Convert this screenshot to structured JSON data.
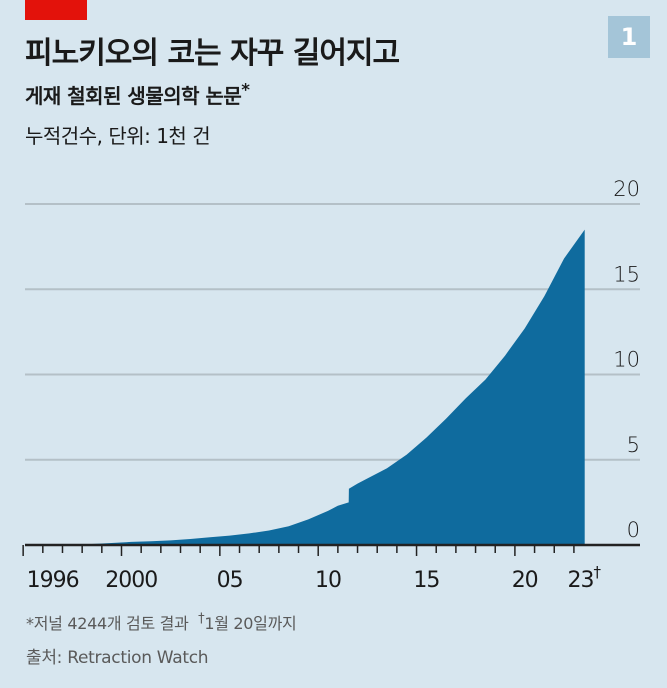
{
  "header": {
    "badge": "1",
    "title": "피노키오의 코는 자꾸 길어지고",
    "subtitle": "게재 철회된 생물의학 논문",
    "subtitle_mark": "*",
    "unit": "누적건수, 단위: 1천 건"
  },
  "footer": {
    "note_mark": "*",
    "note": "저널 4244개 검토 결과",
    "dagger_mark": "†",
    "dagger_note": "1월 20일까지",
    "source": "출처: Retraction Watch"
  },
  "colors": {
    "background": "#d7e6ef",
    "area": "#0f6b9e",
    "gridline": "#b4c0c7",
    "axis": "#222222",
    "brand_red": "#e3120b",
    "badge": "#a4c5d8"
  },
  "chart_data": {
    "type": "area",
    "title": "피노키오의 코는 자꾸 길어지고",
    "subtitle": "게재 철회된 생물의학 논문*",
    "ylabel": "누적건수, 단위: 1천 건",
    "xlabel": "",
    "ylim": [
      0,
      20
    ],
    "yticks": [
      0,
      5,
      10,
      15,
      20
    ],
    "xtick_labels": [
      "1996",
      "2000",
      "05",
      "10",
      "15",
      "20",
      "23†"
    ],
    "xrange": [
      1995,
      2023.1
    ],
    "grid": true,
    "y_axis_position": "right",
    "x": [
      1996.5,
      1997,
      1998,
      1999,
      2000,
      2001,
      2002,
      2003,
      2004,
      2005,
      2006,
      2007,
      2008,
      2009,
      2010,
      2010.5,
      2011.05,
      2011.06,
      2011.5,
      2012,
      2013,
      2014,
      2015,
      2016,
      2017,
      2018,
      2019,
      2020,
      2021,
      2022,
      2023.05
    ],
    "series": [
      {
        "name": "Cumulative retracted biomedical papers (thousands)",
        "values": [
          0,
          0.02,
          0.06,
          0.12,
          0.18,
          0.22,
          0.27,
          0.35,
          0.45,
          0.55,
          0.68,
          0.85,
          1.1,
          1.5,
          2.0,
          2.3,
          2.5,
          3.3,
          3.6,
          3.9,
          4.5,
          5.3,
          6.3,
          7.4,
          8.6,
          9.7,
          11.1,
          12.7,
          14.6,
          16.8,
          18.5
        ]
      }
    ]
  }
}
